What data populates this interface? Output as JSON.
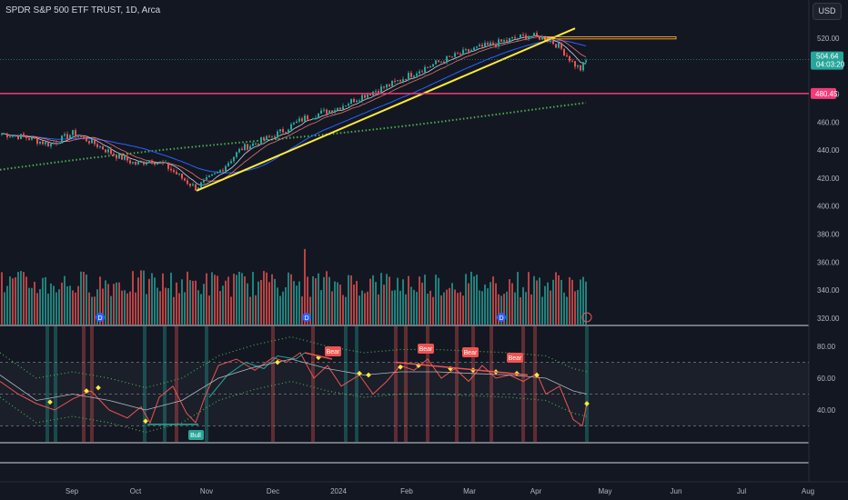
{
  "header": {
    "symbol_title": "SPDR S&P 500 ETF TRUST, 1D, Arca",
    "currency": "USD"
  },
  "price_axis": {
    "ticks": [
      "520.00",
      "500.00",
      "480.00",
      "460.00",
      "440.00",
      "420.00",
      "400.00",
      "380.00",
      "360.00",
      "340.00",
      "320.00"
    ],
    "last_price": "504.64",
    "countdown": "04:03:20",
    "level_label": "480.45"
  },
  "osc_axis": {
    "ticks": [
      "80.00",
      "60.00",
      "40.00"
    ]
  },
  "time_axis": {
    "ticks": [
      "Sep",
      "Oct",
      "Nov",
      "Dec",
      "2024",
      "Feb",
      "Mar",
      "Apr",
      "May",
      "Jun",
      "Jul",
      "Aug"
    ]
  },
  "annotations": {
    "bear_labels": [
      "Bear",
      "Bear",
      "Bear",
      "Bear"
    ],
    "bull_label": "Bull",
    "dividend_marker": "D"
  },
  "colors": {
    "background": "#131722",
    "up": "#26a69a",
    "down": "#ef5350",
    "trendline": "#ffeb3b",
    "level_line": "#f23c7a",
    "resistance": "#f0a030",
    "ma_blue": "#2962ff",
    "ma_green_dotted": "#4caf50",
    "rsi_line": "#ef5350",
    "rsi_signal": "#b2b5be"
  },
  "chart_data": {
    "type": "candlestick",
    "title": "SPDR S&P 500 ETF TRUST, 1D, Arca",
    "x_range": [
      "Aug 2023",
      "Aug 2024"
    ],
    "price_ylim": [
      310,
      530
    ],
    "price_path": [
      {
        "date": "Aug 2023",
        "close": 452
      },
      {
        "date": "Sep 2023",
        "close": 445
      },
      {
        "date": "Sep 2023",
        "close": 437
      },
      {
        "date": "Oct 2023",
        "close": 429
      },
      {
        "date": "Oct 2023",
        "close": 431
      },
      {
        "date": "Oct 2023",
        "close": 413
      },
      {
        "date": "Nov 2023",
        "close": 422
      },
      {
        "date": "Nov 2023",
        "close": 442
      },
      {
        "date": "Dec 2023",
        "close": 455
      },
      {
        "date": "Dec 2023",
        "close": 470
      },
      {
        "date": "2024",
        "close": 476
      },
      {
        "date": "Jan 2024",
        "close": 485
      },
      {
        "date": "Feb 2024",
        "close": 496
      },
      {
        "date": "Feb 2024",
        "close": 507
      },
      {
        "date": "Mar 2024",
        "close": 512
      },
      {
        "date": "Mar 2024",
        "close": 520
      },
      {
        "date": "Apr 2024",
        "close": 522
      },
      {
        "date": "Apr 2024",
        "close": 499
      },
      {
        "date": "Apr 2024",
        "close": 504.64
      }
    ],
    "last_price": 504.64,
    "horizontal_level": 480.45,
    "oscillator": {
      "ylim": [
        20,
        90
      ],
      "levels": [
        70,
        50,
        30
      ],
      "last_value": 44
    }
  }
}
